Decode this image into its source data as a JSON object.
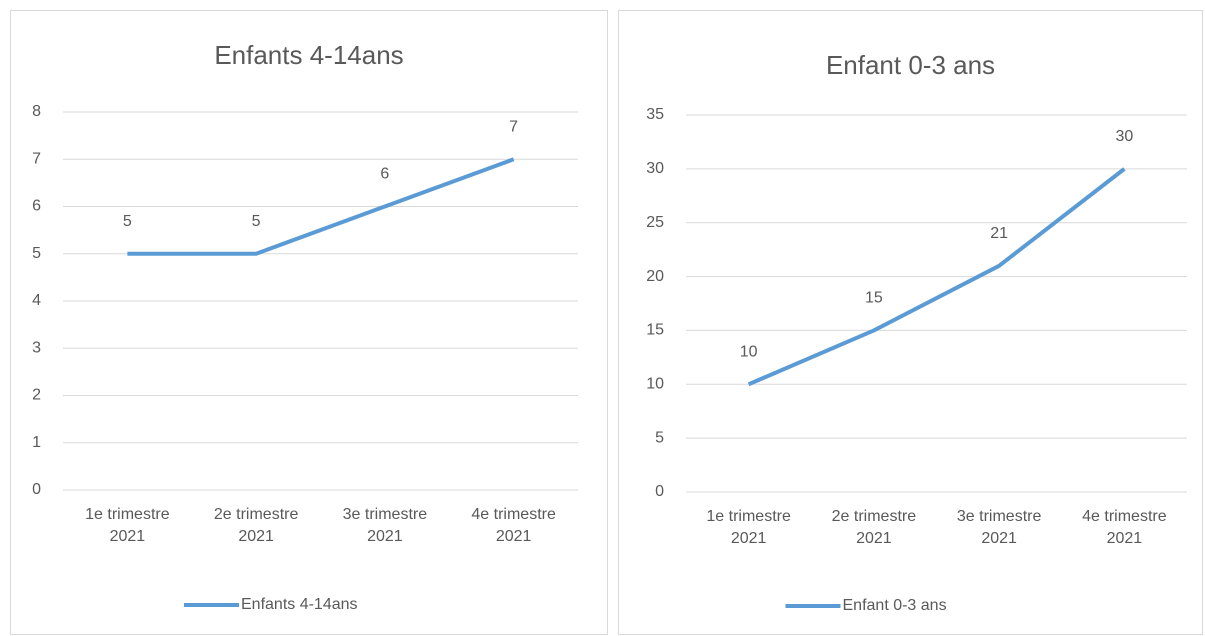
{
  "chart_data": [
    {
      "type": "line",
      "title": "Enfants 4-14ans",
      "categories": [
        "1e trimestre 2021",
        "2e trimestre 2021",
        "3e trimestre 2021",
        "4e trimestre 2021"
      ],
      "series": [
        {
          "name": "Enfants 4-14ans",
          "color": "#5b9bd5",
          "values": [
            5,
            5,
            6,
            7
          ]
        }
      ],
      "ylim": [
        0,
        8
      ],
      "yticks": [
        0,
        1,
        2,
        3,
        4,
        5,
        6,
        7,
        8
      ],
      "grid": true,
      "legend": "bottom"
    },
    {
      "type": "line",
      "title": "Enfant 0-3 ans",
      "categories": [
        "1e trimestre 2021",
        "2e trimestre 2021",
        "3e trimestre 2021",
        "4e trimestre 2021"
      ],
      "series": [
        {
          "name": "Enfant 0-3 ans",
          "color": "#5b9bd5",
          "values": [
            10,
            15,
            21,
            30
          ]
        }
      ],
      "ylim": [
        0,
        35
      ],
      "yticks": [
        0,
        5,
        10,
        15,
        20,
        25,
        30,
        35
      ],
      "grid": true,
      "legend": "bottom"
    }
  ]
}
